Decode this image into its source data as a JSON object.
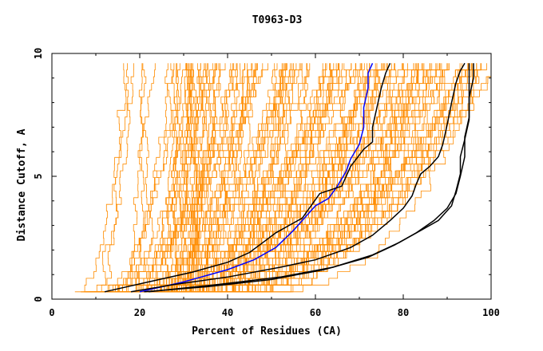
{
  "chart_data": {
    "type": "line",
    "title": "T0963-D3",
    "xlabel": "Percent of Residues (CA)",
    "ylabel": "Distance Cutoff, A",
    "xlim": [
      0,
      100
    ],
    "ylim": [
      0,
      10
    ],
    "x_ticks": [
      "0",
      "20",
      "40",
      "60",
      "80",
      "100"
    ],
    "y_ticks": [
      "0",
      "5",
      "10"
    ],
    "grid": false,
    "colors": {
      "background_series": "#ff8c00",
      "highlight_blue": "#0000ff",
      "highlight_black": "#000000"
    },
    "series": [
      {
        "color": "#0000ff",
        "points": [
          [
            20,
            0.3
          ],
          [
            30,
            0.7
          ],
          [
            40,
            1.2
          ],
          [
            46,
            1.6
          ],
          [
            51,
            2.1
          ],
          [
            55,
            2.8
          ],
          [
            58,
            3.4
          ],
          [
            60,
            3.8
          ],
          [
            63,
            4.1
          ],
          [
            65,
            4.6
          ],
          [
            67,
            5.2
          ],
          [
            68,
            5.7
          ],
          [
            70,
            6.3
          ],
          [
            71,
            7.0
          ],
          [
            71,
            7.8
          ],
          [
            72,
            8.6
          ],
          [
            72,
            9.2
          ],
          [
            73,
            9.6
          ]
        ]
      },
      {
        "color": "#000000",
        "points": [
          [
            12,
            0.3
          ],
          [
            22,
            0.7
          ],
          [
            32,
            1.1
          ],
          [
            40,
            1.5
          ],
          [
            45,
            1.9
          ],
          [
            48,
            2.3
          ],
          [
            51,
            2.7
          ],
          [
            54,
            3.0
          ],
          [
            57,
            3.3
          ],
          [
            59,
            3.8
          ],
          [
            61,
            4.3
          ],
          [
            66,
            4.6
          ],
          [
            68,
            5.4
          ],
          [
            71,
            6.1
          ],
          [
            73,
            6.4
          ],
          [
            73,
            7.0
          ],
          [
            74,
            7.8
          ],
          [
            75,
            8.6
          ],
          [
            76,
            9.2
          ],
          [
            77,
            9.6
          ]
        ]
      },
      {
        "color": "#000000",
        "points": [
          [
            18,
            0.3
          ],
          [
            28,
            0.6
          ],
          [
            40,
            0.9
          ],
          [
            52,
            1.3
          ],
          [
            60,
            1.6
          ],
          [
            68,
            2.1
          ],
          [
            73,
            2.6
          ],
          [
            77,
            3.2
          ],
          [
            80,
            3.7
          ],
          [
            82,
            4.2
          ],
          [
            83,
            4.7
          ],
          [
            84,
            5.1
          ],
          [
            86,
            5.4
          ],
          [
            88,
            5.8
          ],
          [
            89,
            6.3
          ],
          [
            90,
            7.1
          ],
          [
            91,
            8.0
          ],
          [
            92,
            8.8
          ],
          [
            93,
            9.3
          ],
          [
            94,
            9.6
          ]
        ]
      },
      {
        "color": "#000000",
        "points": [
          [
            21,
            0.3
          ],
          [
            35,
            0.5
          ],
          [
            50,
            0.8
          ],
          [
            62,
            1.2
          ],
          [
            72,
            1.7
          ],
          [
            78,
            2.2
          ],
          [
            83,
            2.7
          ],
          [
            87,
            3.2
          ],
          [
            90,
            3.7
          ],
          [
            92,
            4.3
          ],
          [
            93,
            5.0
          ],
          [
            94,
            5.8
          ],
          [
            94,
            6.6
          ],
          [
            95,
            7.4
          ],
          [
            95,
            8.2
          ],
          [
            96,
            9.0
          ],
          [
            96,
            9.6
          ]
        ]
      },
      {
        "color": "#000000",
        "points": [
          [
            22,
            0.3
          ],
          [
            38,
            0.6
          ],
          [
            52,
            0.9
          ],
          [
            64,
            1.3
          ],
          [
            73,
            1.8
          ],
          [
            79,
            2.3
          ],
          [
            84,
            2.8
          ],
          [
            88,
            3.2
          ],
          [
            91,
            3.8
          ],
          [
            92,
            4.4
          ],
          [
            93,
            5.1
          ],
          [
            93,
            5.8
          ],
          [
            94,
            6.5
          ],
          [
            95,
            7.3
          ],
          [
            95,
            8.1
          ],
          [
            95,
            8.9
          ],
          [
            95,
            9.6
          ]
        ]
      }
    ],
    "background_series_note_free": true
  }
}
